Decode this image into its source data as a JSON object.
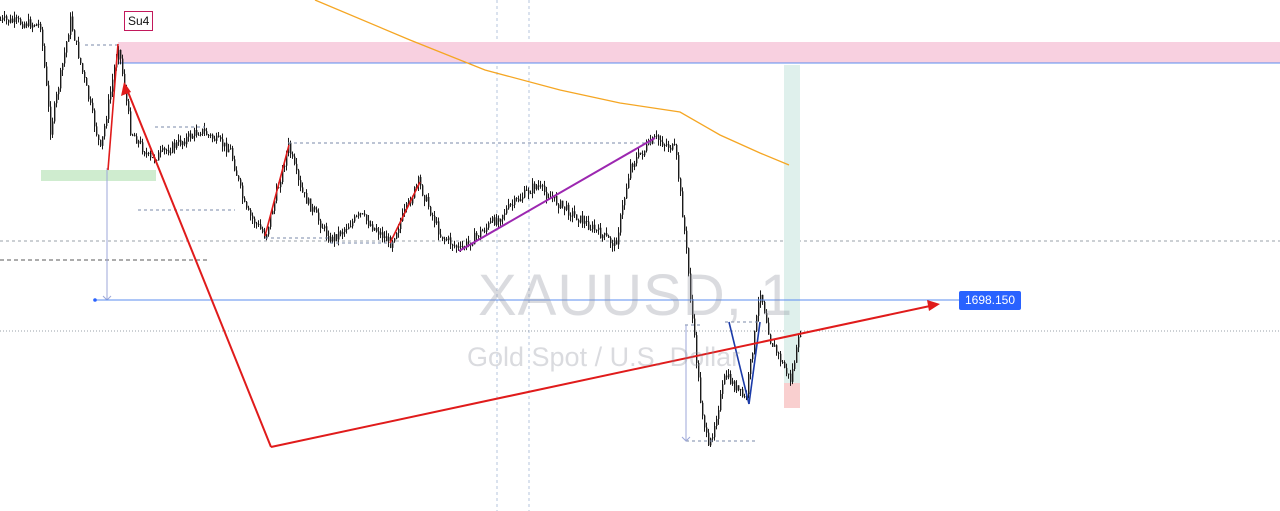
{
  "watermark": {
    "symbol": "XAUUSD, 1",
    "description": "Gold Spot / U.S. Dollar"
  },
  "annotations": {
    "su4_label": "Su4",
    "price_label": "1698.150"
  },
  "colors": {
    "candle": "#1b1b1b",
    "moving_average": "#f5a623",
    "arrow": "#e01b1b",
    "trend_purple": "#9c27b0",
    "trend_blue": "#1a3aa8",
    "horizontal_line": "#5b8def",
    "resistance_zone": "#f8d0e0",
    "support_zone": "#cfeccf",
    "target_zone": "#dff0ec",
    "stop_zone": "#f9cfcf",
    "price_label_bg": "#2962ff"
  },
  "chart_data": {
    "type": "candlestick",
    "symbol": "XAUUSD",
    "timeframe": "1",
    "description": "Gold Spot / U.S. Dollar",
    "highlighted_level": 1698.15,
    "series": [
      {
        "name": "price",
        "style": "candles",
        "path_shape": [
          [
            0,
            20
          ],
          [
            40,
            25
          ],
          [
            50,
            130
          ],
          [
            70,
            20
          ],
          [
            100,
            150
          ],
          [
            118,
            45
          ],
          [
            130,
            130
          ],
          [
            150,
            160
          ],
          [
            200,
            130
          ],
          [
            230,
            150
          ],
          [
            245,
            210
          ],
          [
            265,
            236
          ],
          [
            288,
            146
          ],
          [
            300,
            190
          ],
          [
            330,
            240
          ],
          [
            360,
            215
          ],
          [
            390,
            243
          ],
          [
            418,
            182
          ],
          [
            440,
            235
          ],
          [
            460,
            250
          ],
          [
            500,
            215
          ],
          [
            535,
            185
          ],
          [
            560,
            205
          ],
          [
            615,
            245
          ],
          [
            630,
            165
          ],
          [
            655,
            138
          ],
          [
            675,
            150
          ],
          [
            685,
            240
          ],
          [
            693,
            330
          ],
          [
            700,
            400
          ],
          [
            708,
            450
          ],
          [
            725,
            375
          ],
          [
            745,
            400
          ],
          [
            760,
            290
          ],
          [
            770,
            340
          ],
          [
            790,
            380
          ],
          [
            800,
            332
          ]
        ]
      },
      {
        "name": "moving_average",
        "style": "line",
        "path_shape": [
          [
            315,
            0
          ],
          [
            410,
            40
          ],
          [
            485,
            70
          ],
          [
            560,
            90
          ],
          [
            620,
            103
          ],
          [
            680,
            112
          ],
          [
            720,
            135
          ],
          [
            760,
            153
          ],
          [
            789,
            165
          ]
        ]
      }
    ],
    "drawings": [
      "resistance zone (pink) at chart top",
      "support zone (green) left",
      "long position box with target (teal) and stop (red)",
      "red projection arrows",
      "purple and blue trend lines",
      "red impulse lines"
    ]
  }
}
